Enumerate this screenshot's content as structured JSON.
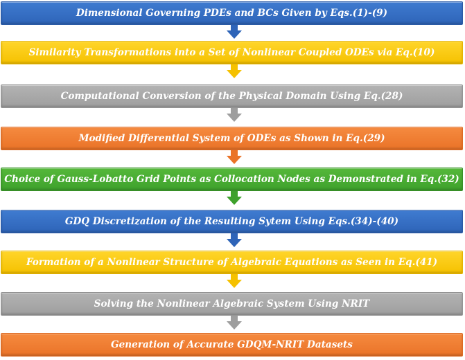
{
  "steps": [
    {
      "label": "Dimensional Governing PDEs and BCs Given by Eqs.(1)-(9)",
      "color": "blue"
    },
    {
      "label": "Similarity Transformations into a Set of Nonlinear Coupled ODEs via Eq.(10)",
      "color": "yellow"
    },
    {
      "label": "Computational Conversion of the Physical Domain Using Eq.(28)",
      "color": "gray"
    },
    {
      "label": "Modified Differential System of ODEs as Shown in Eq.(29)",
      "color": "orange"
    },
    {
      "label": "Choice of Gauss-Lobatto Grid Points as Collocation Nodes as Demonstrated in Eq.(32)",
      "color": "green"
    },
    {
      "label": "GDQ Discretization of the Resulting Sytem Using Eqs.(34)-(40)",
      "color": "blue"
    },
    {
      "label": "Formation of a Nonlinear Structure of Algebraic Equations as Seen in Eq.(41)",
      "color": "yellow"
    },
    {
      "label": "Solving the Nonlinear Algebraic System Using NRIT",
      "color": "gray"
    },
    {
      "label": "Generation of Accurate GDQM-NRIT Datasets",
      "color": "orange"
    }
  ],
  "colors": {
    "blue": "#2e64b8",
    "yellow": "#f5c100",
    "gray": "#9e9e9e",
    "orange": "#ea7328",
    "green": "#3ea12c"
  }
}
